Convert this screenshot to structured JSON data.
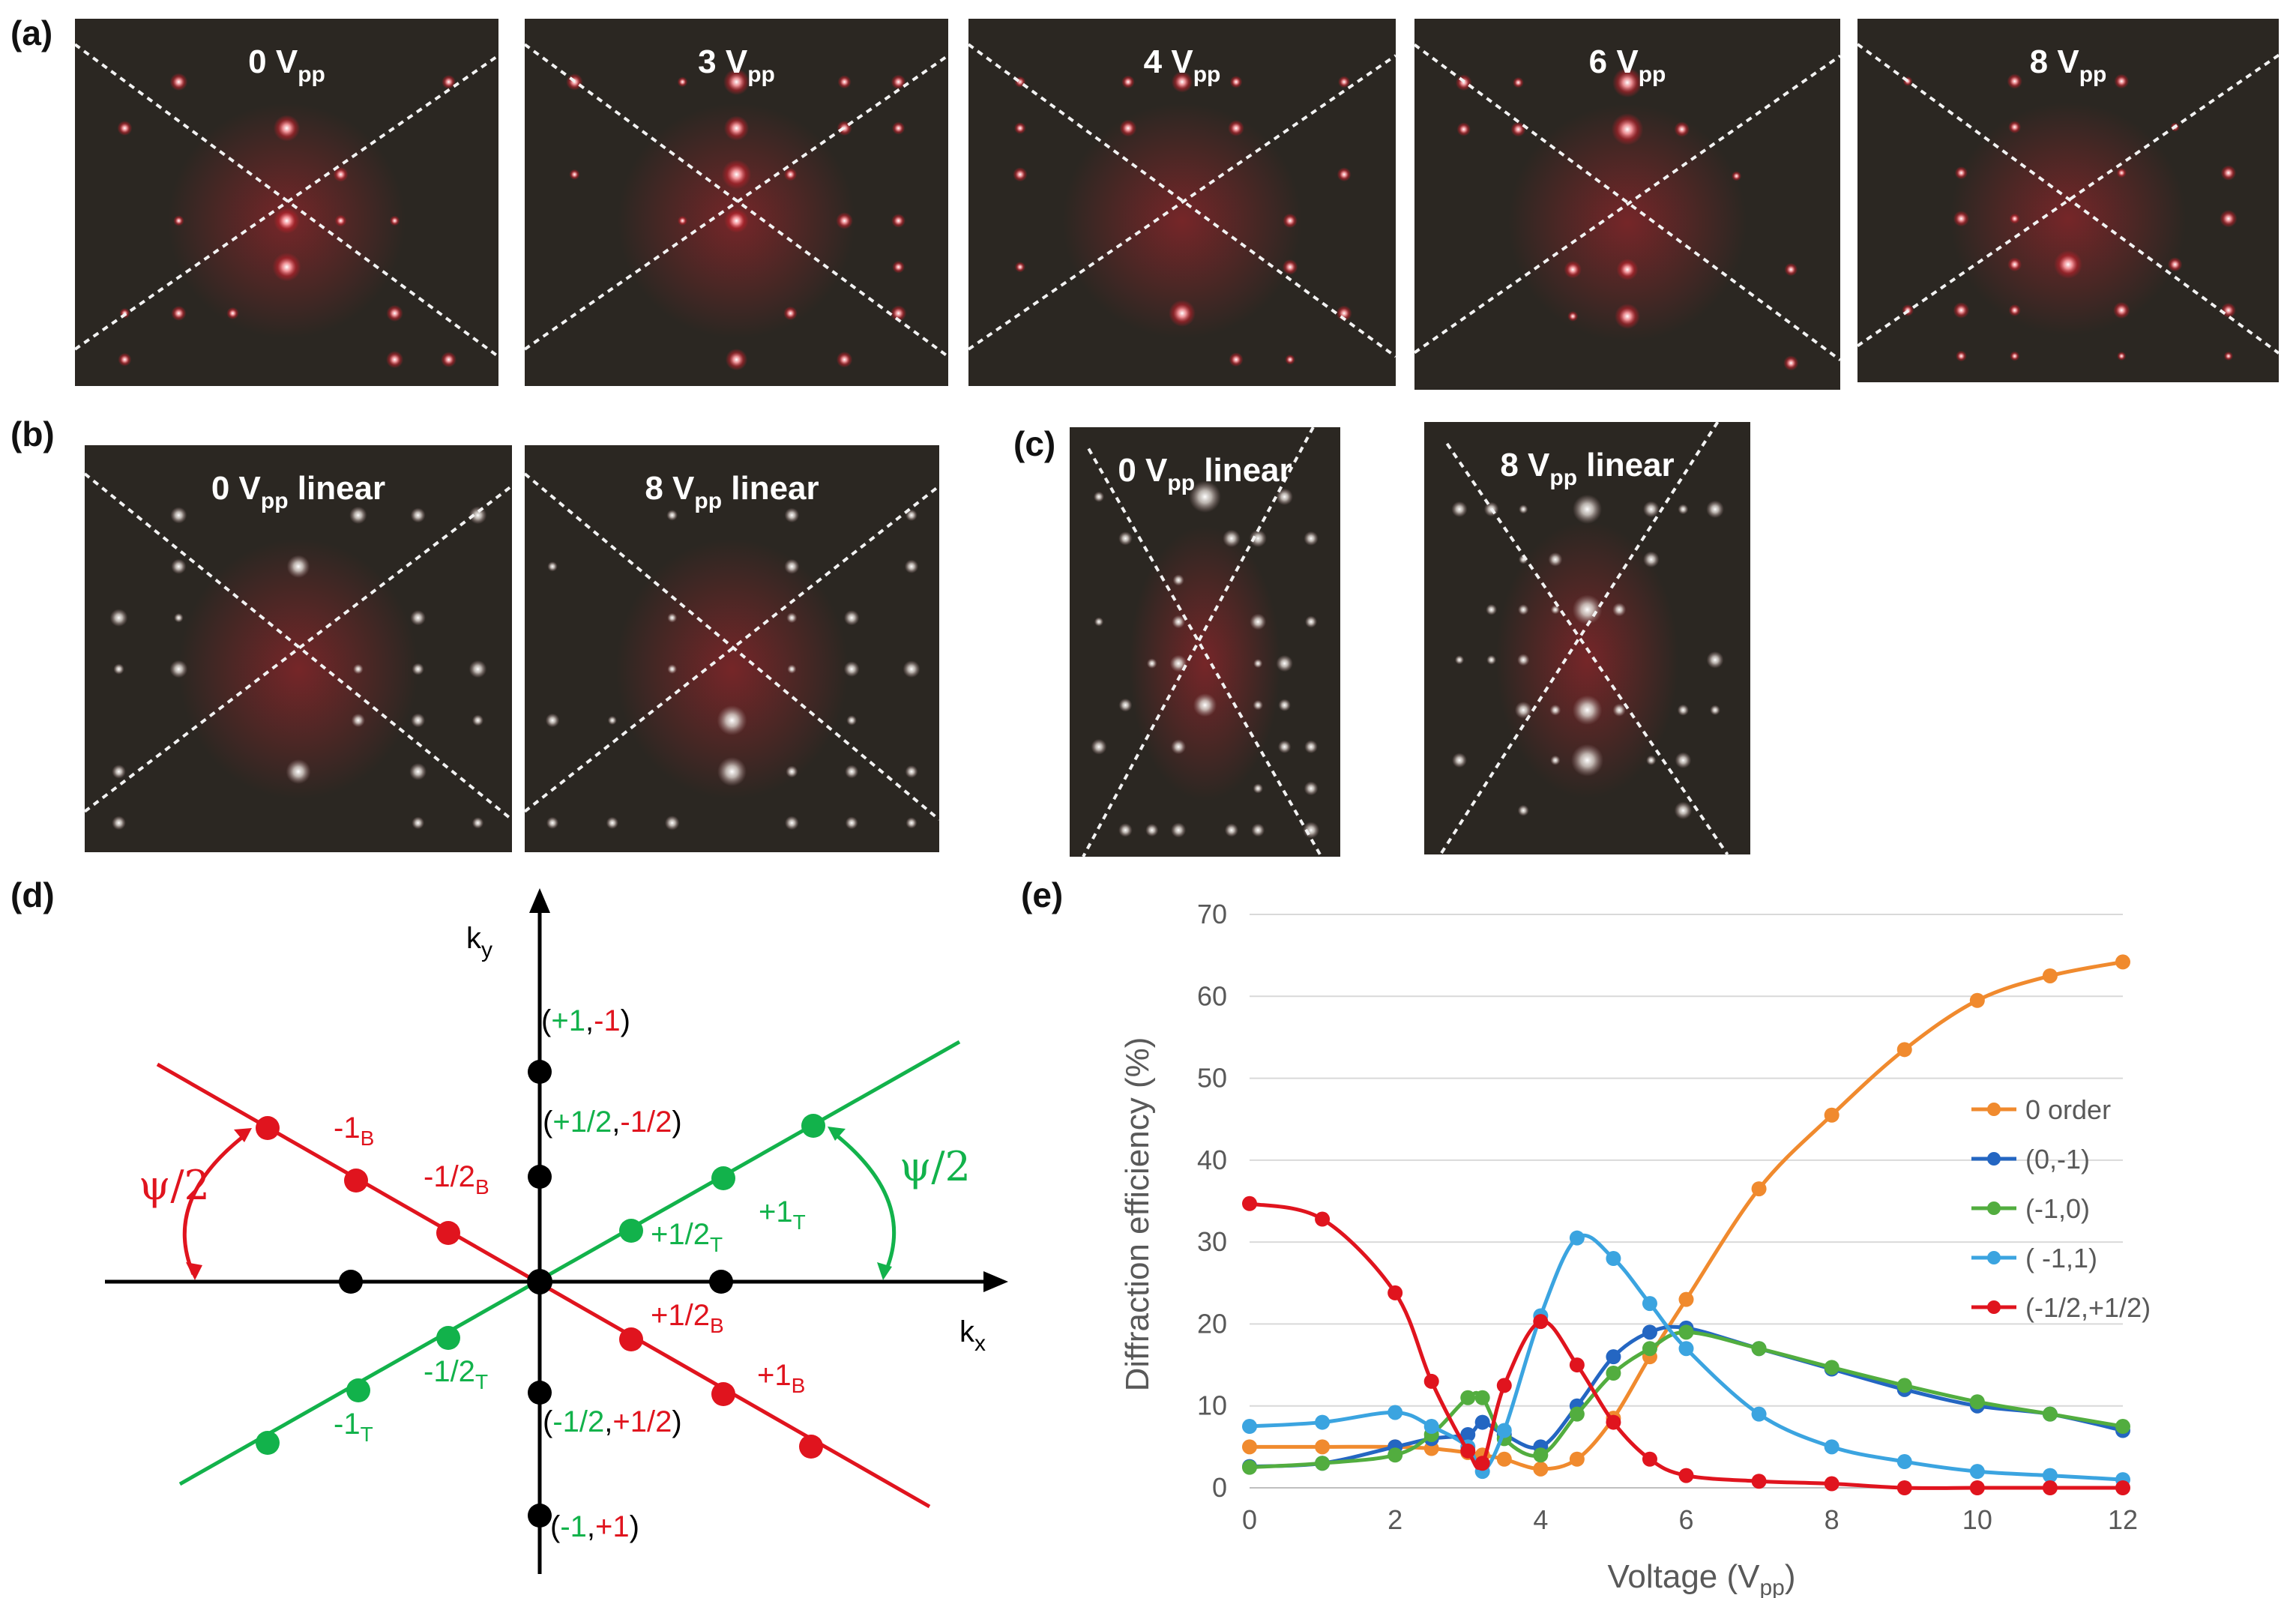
{
  "panel_labels": {
    "a": "(a)",
    "b": "(b)",
    "c": "(c)",
    "d": "(d)",
    "e": "(e)"
  },
  "photos": {
    "a": [
      {
        "v": "0 V",
        "sub": "pp",
        "suffix": ""
      },
      {
        "v": "3 V",
        "sub": "pp",
        "suffix": ""
      },
      {
        "v": "4 V",
        "sub": "pp",
        "suffix": ""
      },
      {
        "v": "6 V",
        "sub": "pp",
        "suffix": ""
      },
      {
        "v": "8 V",
        "sub": "pp",
        "suffix": ""
      }
    ],
    "b": [
      {
        "v": "0 V",
        "sub": "pp",
        "suffix": " linear"
      },
      {
        "v": "8 V",
        "sub": "pp",
        "suffix": " linear"
      }
    ],
    "c": [
      {
        "v": "0 V",
        "sub": "pp",
        "suffix": " linear"
      },
      {
        "v": "8 V",
        "sub": "pp",
        "suffix": " linear"
      }
    ]
  },
  "diagram": {
    "kx": "k",
    "kx_sub": "x",
    "ky": "k",
    "ky_sub": "y",
    "psi": "ψ/2",
    "pt_p1m1": {
      "open": "(",
      "a": "+1",
      "comma": ",",
      "b": "-1",
      "close": ")"
    },
    "pt_p12m12": {
      "open": "(",
      "a": "+1/2",
      "comma": ",",
      "b": "-1/2",
      "close": ")"
    },
    "pt_m12p12": {
      "open": "(",
      "a": "-1/2",
      "comma": ",",
      "b": "+1/2",
      "close": ")"
    },
    "pt_m1p1": {
      "open": "(",
      "a": "-1",
      "comma": ",",
      "b": "+1",
      "close": ")"
    },
    "red_m1B": {
      "n": "-1",
      "s": "B"
    },
    "red_m12B": {
      "n": "-1/2",
      "s": "B"
    },
    "red_p12B": {
      "n": "+1/2",
      "s": "B"
    },
    "red_p1B": {
      "n": "+1",
      "s": "B"
    },
    "grn_p1T": {
      "n": "+1",
      "s": "T"
    },
    "grn_p12T": {
      "n": "+1/2",
      "s": "T"
    },
    "grn_m12T": {
      "n": "-1/2",
      "s": "T"
    },
    "grn_m1T": {
      "n": "-1",
      "s": "T"
    },
    "colors": {
      "red": "#e0141e",
      "green": "#12b24b",
      "black": "#000000"
    }
  },
  "chart_data": {
    "type": "line",
    "title": "",
    "xlabel": "Voltage (V",
    "xlabel_sub": "pp",
    "xlabel_end": ")",
    "ylabel": "Diffraction efficiency (%)",
    "xlim": [
      0,
      12
    ],
    "ylim": [
      0,
      70
    ],
    "xticks": [
      0,
      2,
      4,
      6,
      8,
      10,
      12
    ],
    "yticks": [
      0,
      10,
      20,
      30,
      40,
      50,
      60,
      70
    ],
    "grid": "horizontal",
    "legend": "right",
    "series": [
      {
        "name": "0 order",
        "color": "#f08a2e",
        "x": [
          0,
          1,
          2,
          2.5,
          3,
          3.2,
          3.5,
          4,
          4.5,
          5,
          5.5,
          6,
          7,
          8,
          9,
          10,
          11,
          12
        ],
        "y": [
          5,
          5,
          5,
          4.8,
          4.3,
          4,
          3.5,
          2.3,
          3.5,
          8.5,
          16,
          23,
          36.5,
          45.5,
          53.5,
          59.5,
          62.5,
          64.2
        ]
      },
      {
        "name": "(0,-1)",
        "color": "#2466c2",
        "x": [
          0,
          1,
          2,
          2.5,
          3,
          3.2,
          3.5,
          4,
          4.5,
          5,
          5.5,
          6,
          7,
          8,
          9,
          10,
          11,
          12
        ],
        "y": [
          2.6,
          3,
          5,
          6,
          6.5,
          8,
          6.5,
          5,
          10,
          16,
          19,
          19.5,
          17,
          14.5,
          12,
          10,
          9,
          7
        ]
      },
      {
        "name": "(-1,0)",
        "color": "#52ad3f",
        "x": [
          0,
          1,
          2,
          2.5,
          3,
          3.2,
          3.5,
          4,
          4.5,
          5,
          5.5,
          6,
          7,
          8,
          9,
          10,
          11,
          12
        ],
        "y": [
          2.5,
          3,
          4,
          6.5,
          11,
          11,
          6,
          4,
          9,
          14,
          17,
          19,
          17,
          14.7,
          12.5,
          10.5,
          9,
          7.5
        ]
      },
      {
        "name": "( -1,1)",
        "color": "#3ba4e0",
        "x": [
          0,
          1,
          2,
          2.5,
          3,
          3.2,
          3.5,
          4,
          4.5,
          5,
          5.5,
          6,
          7,
          8,
          9,
          10,
          11,
          12
        ],
        "y": [
          7.5,
          8,
          9.2,
          7.5,
          5,
          2,
          7,
          21,
          30.5,
          28,
          22.5,
          17,
          9,
          5,
          3.2,
          2,
          1.5,
          1
        ]
      },
      {
        "name": "(-1/2,+1/2)",
        "color": "#e0141e",
        "x": [
          0,
          1,
          2,
          2.5,
          3,
          3.2,
          3.5,
          4,
          4.5,
          5,
          5.5,
          6,
          7,
          8,
          9,
          10,
          11,
          12
        ],
        "y": [
          34.7,
          32.8,
          23.8,
          13,
          4.5,
          3,
          12.5,
          20.3,
          15,
          8,
          3.5,
          1.5,
          0.8,
          0.5,
          0,
          0,
          0,
          0
        ]
      }
    ]
  }
}
